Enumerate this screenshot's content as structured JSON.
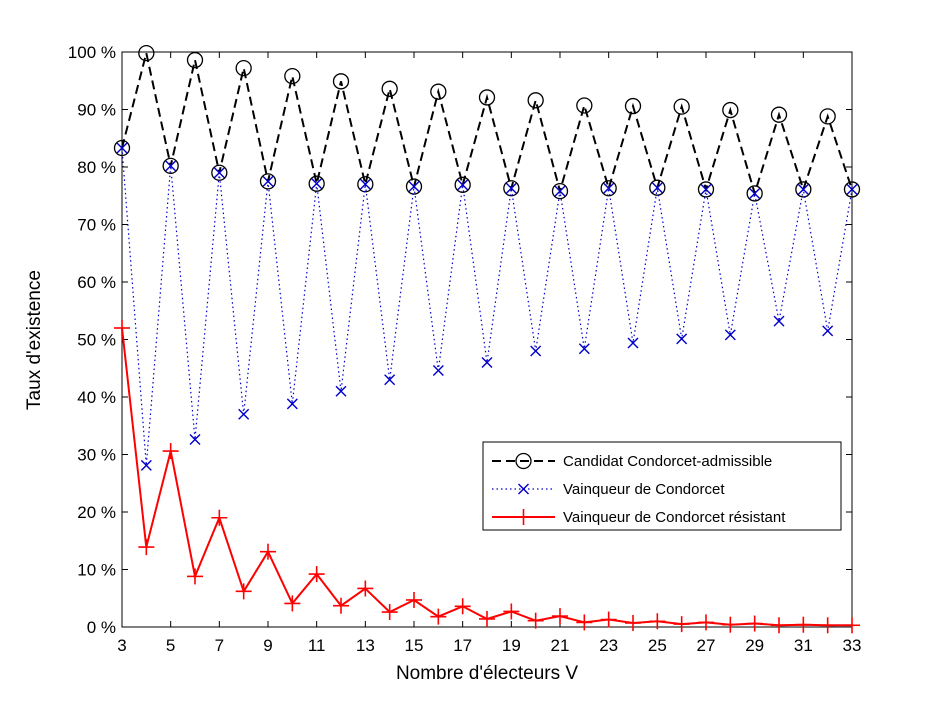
{
  "chart_data": {
    "type": "line",
    "xlabel": "Nombre d'électeurs V",
    "ylabel": "Taux d'existence",
    "xlim": [
      3,
      33
    ],
    "ylim": [
      0,
      100
    ],
    "x_ticks": [
      3,
      5,
      7,
      9,
      11,
      13,
      15,
      17,
      19,
      21,
      23,
      25,
      27,
      29,
      31,
      33
    ],
    "y_ticks": [
      0,
      10,
      20,
      30,
      40,
      50,
      60,
      70,
      80,
      90,
      100
    ],
    "y_tick_labels": [
      "0 %",
      "10 %",
      "20 %",
      "30 %",
      "40 %",
      "50 %",
      "60 %",
      "70 %",
      "80 %",
      "90 %",
      "100 %"
    ],
    "grid": false,
    "legend_position": "lower-right",
    "x": [
      3,
      4,
      5,
      6,
      7,
      8,
      9,
      10,
      11,
      12,
      13,
      14,
      15,
      16,
      17,
      18,
      19,
      20,
      21,
      22,
      23,
      24,
      25,
      26,
      27,
      28,
      29,
      30,
      31,
      32,
      33
    ],
    "series": [
      {
        "name": "Candidat Condorcet-admissible",
        "color": "#000000",
        "line": "dashed",
        "marker": "circle",
        "values": [
          83.3,
          99.8,
          80.2,
          98.6,
          79.0,
          97.2,
          77.5,
          95.8,
          77.1,
          94.9,
          77.0,
          93.6,
          76.6,
          93.1,
          76.9,
          92.1,
          76.3,
          91.6,
          75.8,
          90.7,
          76.3,
          90.6,
          76.4,
          90.5,
          76.1,
          89.9,
          75.4,
          89.1,
          76.1,
          88.8,
          76.1
        ]
      },
      {
        "name": "Vainqueur de Condorcet",
        "color": "#0000cc",
        "line": "dotted",
        "marker": "x",
        "values": [
          83.3,
          28.1,
          80.2,
          32.6,
          79.0,
          37.0,
          77.5,
          38.8,
          77.1,
          41.0,
          77.0,
          43.0,
          76.6,
          44.6,
          76.9,
          46.0,
          76.3,
          48.0,
          75.8,
          48.4,
          76.3,
          49.4,
          76.4,
          50.1,
          76.1,
          50.8,
          75.4,
          53.2,
          76.1,
          51.5,
          76.1
        ]
      },
      {
        "name": "Vainqueur de Condorcet résistant",
        "color": "#ff0000",
        "line": "solid",
        "marker": "plus",
        "values": [
          52.0,
          13.9,
          30.6,
          8.8,
          19.0,
          6.2,
          13.1,
          4.1,
          9.2,
          3.7,
          6.7,
          2.6,
          4.7,
          1.8,
          3.6,
          1.4,
          2.7,
          1.1,
          1.9,
          0.8,
          1.3,
          0.7,
          1.0,
          0.5,
          0.8,
          0.4,
          0.6,
          0.3,
          0.4,
          0.3,
          0.3
        ]
      }
    ]
  }
}
